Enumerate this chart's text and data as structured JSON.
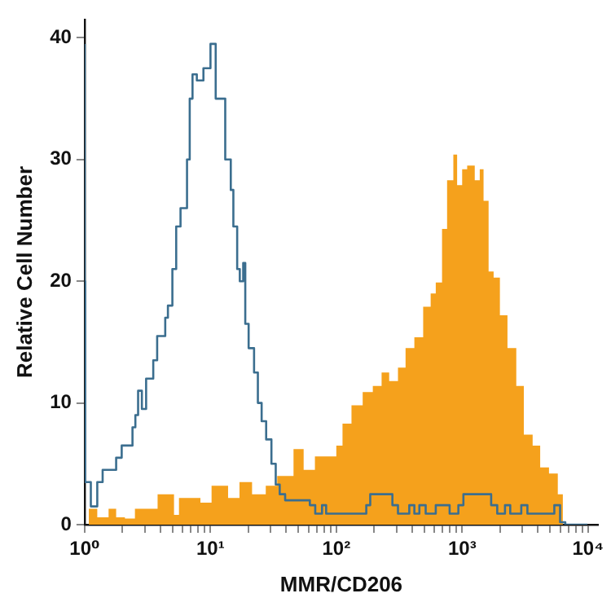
{
  "chart_data": {
    "type": "step",
    "xlabel": "MMR/CD206",
    "ylabel": "Relative Cell Number",
    "log": "x",
    "grid": false,
    "xlim": [
      1,
      12000
    ],
    "ylim": [
      0,
      41.5
    ],
    "xticks": [
      {
        "value": 1,
        "label": "10⁰"
      },
      {
        "value": 2,
        "label": null
      },
      {
        "value": 3,
        "label": null
      },
      {
        "value": 4,
        "label": null
      },
      {
        "value": 5,
        "label": null
      },
      {
        "value": 6,
        "label": null
      },
      {
        "value": 7,
        "label": null
      },
      {
        "value": 8,
        "label": null
      },
      {
        "value": 9,
        "label": null
      },
      {
        "value": 10,
        "label": "10¹"
      },
      {
        "value": 20,
        "label": null
      },
      {
        "value": 30,
        "label": null
      },
      {
        "value": 40,
        "label": null
      },
      {
        "value": 50,
        "label": null
      },
      {
        "value": 60,
        "label": null
      },
      {
        "value": 70,
        "label": null
      },
      {
        "value": 80,
        "label": null
      },
      {
        "value": 90,
        "label": null
      },
      {
        "value": 100,
        "label": "10²"
      },
      {
        "value": 200,
        "label": null
      },
      {
        "value": 300,
        "label": null
      },
      {
        "value": 400,
        "label": null
      },
      {
        "value": 500,
        "label": null
      },
      {
        "value": 600,
        "label": null
      },
      {
        "value": 700,
        "label": null
      },
      {
        "value": 800,
        "label": null
      },
      {
        "value": 900,
        "label": null
      },
      {
        "value": 1000,
        "label": "10³"
      },
      {
        "value": 2000,
        "label": null
      },
      {
        "value": 3000,
        "label": null
      },
      {
        "value": 4000,
        "label": null
      },
      {
        "value": 5000,
        "label": null
      },
      {
        "value": 6000,
        "label": null
      },
      {
        "value": 7000,
        "label": null
      },
      {
        "value": 8000,
        "label": null
      },
      {
        "value": 9000,
        "label": null
      },
      {
        "value": 10000,
        "label": "10⁴"
      }
    ],
    "yticks": [
      0,
      10,
      20,
      30,
      40
    ],
    "series": [
      {
        "type": "step",
        "color": "#3b6e8f",
        "x": [
          1,
          1.01,
          1.12,
          1.26,
          1.39,
          1.78,
          1.97,
          2.4,
          2.53,
          2.66,
          2.85,
          3.08,
          3.51,
          3.77,
          4.37,
          4.59,
          4.98,
          5.34,
          5.78,
          6.51,
          6.84,
          7.2,
          7.79,
          8.79,
          10,
          11,
          13.1,
          14.5,
          15.2,
          16.3,
          17.1,
          18.2,
          18.9,
          20.1,
          22.2,
          23.8,
          25.5,
          27.7,
          30.5,
          33,
          35.5,
          39.2,
          61.6,
          68,
          77,
          83,
          173,
          186,
          279,
          309,
          380,
          417,
          457,
          513,
          617,
          795,
          933,
          1023,
          1700,
          1900,
          2190,
          2410,
          2950,
          3300,
          5400,
          6000,
          6600,
          9900
        ],
        "values": [
          39.5,
          20,
          3.5,
          1.5,
          3.5,
          4.5,
          5.5,
          6.5,
          8,
          9,
          11,
          9.5,
          12,
          13.5,
          15.5,
          17,
          18,
          21,
          24.5,
          26,
          30,
          35,
          37,
          36.5,
          37.5,
          39.5,
          35,
          30,
          27.5,
          24.5,
          21,
          20,
          21.5,
          16.5,
          14.5,
          12.5,
          10,
          8.5,
          7,
          5,
          3.3,
          2.5,
          2,
          1.6,
          0.9,
          1.6,
          0.9,
          1.6,
          2.5,
          1.6,
          0.9,
          1.6,
          0.9,
          1.6,
          0.9,
          1.6,
          0.9,
          1.6,
          2.5,
          1.6,
          0.9,
          1.6,
          0.9,
          1.6,
          0.9,
          1.6,
          0.2,
          0
        ]
      },
      {
        "type": "area",
        "color": "#f5a11c",
        "x": [
          1.08,
          1.26,
          1.55,
          1.78,
          2.09,
          2.51,
          3.8,
          5.13,
          5.62,
          8.32,
          10.2,
          13.8,
          17,
          21.4,
          27.5,
          33.9,
          45.7,
          55,
          67.6,
          100,
          112,
          132,
          162,
          195,
          229,
          263,
          309,
          355,
          417,
          490,
          562,
          617,
          692,
          759,
          851,
          912,
          1000,
          1096,
          1259,
          1380,
          1479,
          1622,
          1778,
          1995,
          2291,
          2692,
          3090,
          3631,
          4169,
          4898,
          5754,
          6310,
          6607
        ],
        "values": [
          0.5,
          1.3,
          0.6,
          1.3,
          0.6,
          0.5,
          1.3,
          2.5,
          0.8,
          2.2,
          1.8,
          3.2,
          2.2,
          3.5,
          2.5,
          3.2,
          4,
          6.2,
          4.5,
          5.6,
          6.5,
          8.3,
          9.8,
          10.9,
          11.4,
          12.5,
          11.8,
          12.9,
          14.5,
          15.4,
          17.9,
          19,
          19.9,
          24.3,
          28.3,
          30.4,
          27.9,
          29.2,
          29.5,
          28.3,
          29.2,
          26.6,
          20.8,
          20.3,
          17.2,
          14.5,
          11.4,
          7.4,
          6.5,
          4.7,
          4.2,
          2.5,
          0
        ]
      }
    ]
  }
}
